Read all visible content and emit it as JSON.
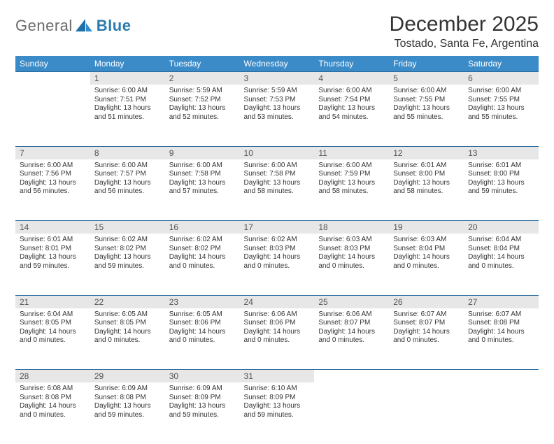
{
  "logo": {
    "word1": "General",
    "word2": "Blue"
  },
  "title": "December 2025",
  "location": "Tostado, Santa Fe, Argentina",
  "colors": {
    "header_bg": "#3b8bc8",
    "header_text": "#ffffff",
    "daynum_bg": "#e7e7e7",
    "border": "#2a6a9c",
    "text": "#333333"
  },
  "day_headers": [
    "Sunday",
    "Monday",
    "Tuesday",
    "Wednesday",
    "Thursday",
    "Friday",
    "Saturday"
  ],
  "weeks": [
    [
      null,
      {
        "n": "1",
        "sr": "6:00 AM",
        "ss": "7:51 PM",
        "dl": "13 hours and 51 minutes."
      },
      {
        "n": "2",
        "sr": "5:59 AM",
        "ss": "7:52 PM",
        "dl": "13 hours and 52 minutes."
      },
      {
        "n": "3",
        "sr": "5:59 AM",
        "ss": "7:53 PM",
        "dl": "13 hours and 53 minutes."
      },
      {
        "n": "4",
        "sr": "6:00 AM",
        "ss": "7:54 PM",
        "dl": "13 hours and 54 minutes."
      },
      {
        "n": "5",
        "sr": "6:00 AM",
        "ss": "7:55 PM",
        "dl": "13 hours and 55 minutes."
      },
      {
        "n": "6",
        "sr": "6:00 AM",
        "ss": "7:55 PM",
        "dl": "13 hours and 55 minutes."
      }
    ],
    [
      {
        "n": "7",
        "sr": "6:00 AM",
        "ss": "7:56 PM",
        "dl": "13 hours and 56 minutes."
      },
      {
        "n": "8",
        "sr": "6:00 AM",
        "ss": "7:57 PM",
        "dl": "13 hours and 56 minutes."
      },
      {
        "n": "9",
        "sr": "6:00 AM",
        "ss": "7:58 PM",
        "dl": "13 hours and 57 minutes."
      },
      {
        "n": "10",
        "sr": "6:00 AM",
        "ss": "7:58 PM",
        "dl": "13 hours and 58 minutes."
      },
      {
        "n": "11",
        "sr": "6:00 AM",
        "ss": "7:59 PM",
        "dl": "13 hours and 58 minutes."
      },
      {
        "n": "12",
        "sr": "6:01 AM",
        "ss": "8:00 PM",
        "dl": "13 hours and 58 minutes."
      },
      {
        "n": "13",
        "sr": "6:01 AM",
        "ss": "8:00 PM",
        "dl": "13 hours and 59 minutes."
      }
    ],
    [
      {
        "n": "14",
        "sr": "6:01 AM",
        "ss": "8:01 PM",
        "dl": "13 hours and 59 minutes."
      },
      {
        "n": "15",
        "sr": "6:02 AM",
        "ss": "8:02 PM",
        "dl": "13 hours and 59 minutes."
      },
      {
        "n": "16",
        "sr": "6:02 AM",
        "ss": "8:02 PM",
        "dl": "14 hours and 0 minutes."
      },
      {
        "n": "17",
        "sr": "6:02 AM",
        "ss": "8:03 PM",
        "dl": "14 hours and 0 minutes."
      },
      {
        "n": "18",
        "sr": "6:03 AM",
        "ss": "8:03 PM",
        "dl": "14 hours and 0 minutes."
      },
      {
        "n": "19",
        "sr": "6:03 AM",
        "ss": "8:04 PM",
        "dl": "14 hours and 0 minutes."
      },
      {
        "n": "20",
        "sr": "6:04 AM",
        "ss": "8:04 PM",
        "dl": "14 hours and 0 minutes."
      }
    ],
    [
      {
        "n": "21",
        "sr": "6:04 AM",
        "ss": "8:05 PM",
        "dl": "14 hours and 0 minutes."
      },
      {
        "n": "22",
        "sr": "6:05 AM",
        "ss": "8:05 PM",
        "dl": "14 hours and 0 minutes."
      },
      {
        "n": "23",
        "sr": "6:05 AM",
        "ss": "8:06 PM",
        "dl": "14 hours and 0 minutes."
      },
      {
        "n": "24",
        "sr": "6:06 AM",
        "ss": "8:06 PM",
        "dl": "14 hours and 0 minutes."
      },
      {
        "n": "25",
        "sr": "6:06 AM",
        "ss": "8:07 PM",
        "dl": "14 hours and 0 minutes."
      },
      {
        "n": "26",
        "sr": "6:07 AM",
        "ss": "8:07 PM",
        "dl": "14 hours and 0 minutes."
      },
      {
        "n": "27",
        "sr": "6:07 AM",
        "ss": "8:08 PM",
        "dl": "14 hours and 0 minutes."
      }
    ],
    [
      {
        "n": "28",
        "sr": "6:08 AM",
        "ss": "8:08 PM",
        "dl": "14 hours and 0 minutes."
      },
      {
        "n": "29",
        "sr": "6:09 AM",
        "ss": "8:08 PM",
        "dl": "13 hours and 59 minutes."
      },
      {
        "n": "30",
        "sr": "6:09 AM",
        "ss": "8:09 PM",
        "dl": "13 hours and 59 minutes."
      },
      {
        "n": "31",
        "sr": "6:10 AM",
        "ss": "8:09 PM",
        "dl": "13 hours and 59 minutes."
      },
      null,
      null,
      null
    ]
  ],
  "labels": {
    "sunrise": "Sunrise:",
    "sunset": "Sunset:",
    "daylight": "Daylight:"
  }
}
